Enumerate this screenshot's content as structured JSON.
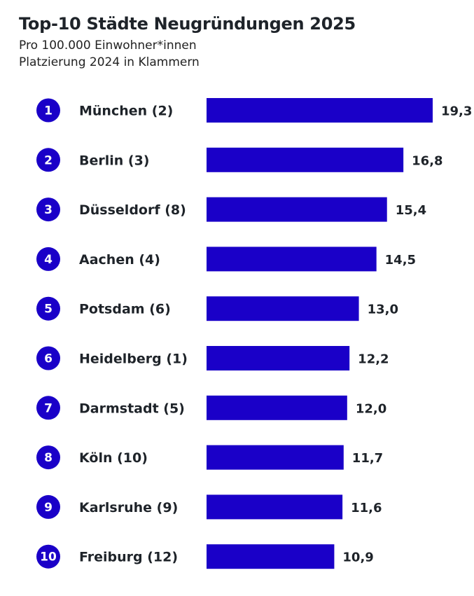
{
  "chart_data": {
    "type": "bar",
    "orientation": "horizontal",
    "title": "Top-10 Städte Neugründungen 2025",
    "subtitle": [
      "Pro 100.000 Einwohner*innen",
      "Platzierung 2024 in Klammern"
    ],
    "categories": [
      "München (2)",
      "Berlin (3)",
      "Düsseldorf (8)",
      "Aachen (4)",
      "Potsdam (6)",
      "Heidelberg (1)",
      "Darmstadt (5)",
      "Köln (10)",
      "Karlsruhe (9)",
      "Freiburg (12)"
    ],
    "ranks": [
      "1",
      "2",
      "3",
      "4",
      "5",
      "6",
      "7",
      "8",
      "9",
      "10"
    ],
    "values": [
      19.3,
      16.8,
      15.4,
      14.5,
      13.0,
      12.2,
      12.0,
      11.7,
      11.6,
      10.9
    ],
    "value_labels": [
      "19,3",
      "16,8",
      "15,4",
      "14,5",
      "13,0",
      "12,2",
      "12,0",
      "11,7",
      "11,6",
      "10,9"
    ],
    "xlabel": "",
    "ylabel": "",
    "xlim": [
      0,
      19.3
    ],
    "grid": false,
    "bar_color": "#1a00c8"
  }
}
